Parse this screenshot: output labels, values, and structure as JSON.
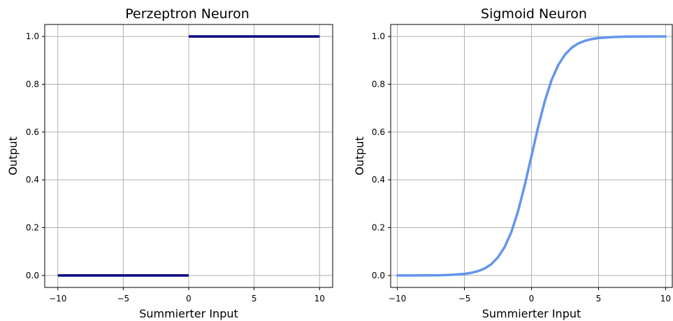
{
  "chart_data": [
    {
      "type": "line",
      "title": "Perzeptron Neuron",
      "xlabel": "Summierter Input",
      "ylabel": "Output",
      "xlim": [
        -11,
        11
      ],
      "ylim": [
        -0.05,
        1.05
      ],
      "x_ticks": [
        -10,
        -5,
        0,
        5,
        10
      ],
      "x_tick_labels": [
        "−10",
        "−5",
        "0",
        "5",
        "10"
      ],
      "y_ticks": [
        0.0,
        0.2,
        0.4,
        0.6,
        0.8,
        1.0
      ],
      "y_tick_labels": [
        "0.0",
        "0.2",
        "0.4",
        "0.6",
        "0.8",
        "1.0"
      ],
      "grid": true,
      "series": [
        {
          "color": "#00007f",
          "segments": [
            [
              [
                -10,
                0
              ],
              [
                0,
                0
              ]
            ],
            [
              [
                0,
                1
              ],
              [
                10,
                1
              ]
            ]
          ]
        }
      ]
    },
    {
      "type": "line",
      "title": "Sigmoid Neuron",
      "xlabel": "Summierter Input",
      "ylabel": "Output",
      "xlim": [
        -10.5,
        10.5
      ],
      "ylim": [
        -0.05,
        1.05
      ],
      "x_ticks": [
        -10,
        -5,
        0,
        5,
        10
      ],
      "x_tick_labels": [
        "−10",
        "−5",
        "0",
        "5",
        "10"
      ],
      "y_ticks": [
        0.0,
        0.2,
        0.4,
        0.6,
        0.8,
        1.0
      ],
      "y_tick_labels": [
        "0.0",
        "0.2",
        "0.4",
        "0.6",
        "0.8",
        "1.0"
      ],
      "grid": true,
      "series": [
        {
          "color": "#6495ed",
          "x": [
            -10,
            -9,
            -8,
            -7,
            -6,
            -5,
            -4.5,
            -4,
            -3.5,
            -3,
            -2.5,
            -2,
            -1.5,
            -1,
            -0.5,
            0,
            0.5,
            1,
            1.5,
            2,
            2.5,
            3,
            3.5,
            4,
            4.5,
            5,
            6,
            7,
            8,
            9,
            10
          ],
          "y": [
            0.0,
            0.0001,
            0.0003,
            0.0009,
            0.0025,
            0.0067,
            0.011,
            0.018,
            0.029,
            0.047,
            0.076,
            0.119,
            0.182,
            0.269,
            0.378,
            0.5,
            0.622,
            0.731,
            0.818,
            0.881,
            0.924,
            0.953,
            0.971,
            0.982,
            0.989,
            0.9933,
            0.9975,
            0.9991,
            0.9997,
            0.9999,
            1.0
          ]
        }
      ]
    }
  ]
}
